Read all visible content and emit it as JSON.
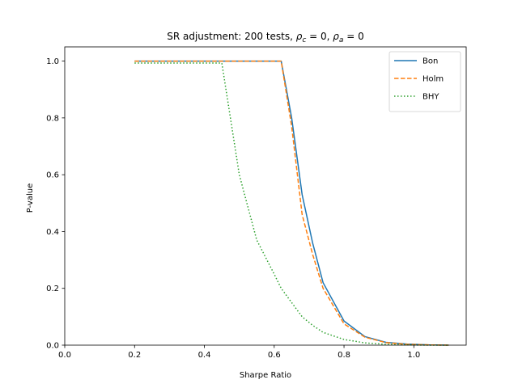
{
  "chart_data": {
    "type": "line",
    "title": {
      "prefix": "SR adjustment: 200 tests, ",
      "rho1_sub": "c",
      "mid": " = 0, ",
      "rho2_sub": "a",
      "suffix": " = 0"
    },
    "xlabel": "Sharpe Ratio",
    "ylabel": "P-value",
    "xlim": [
      0.0,
      1.15
    ],
    "ylim": [
      0.0,
      1.05
    ],
    "xticks": [
      0.0,
      0.2,
      0.4,
      0.6,
      0.8,
      1.0
    ],
    "xtick_labels": [
      "0.0",
      "0.2",
      "0.4",
      "0.6",
      "0.8",
      "1.0"
    ],
    "yticks": [
      0.0,
      0.2,
      0.4,
      0.6,
      0.8,
      1.0
    ],
    "ytick_labels": [
      "0.0",
      "0.2",
      "0.4",
      "0.6",
      "0.8",
      "1.0"
    ],
    "grid": false,
    "legend_position": "top-right",
    "x": [
      0.2,
      0.25,
      0.3,
      0.35,
      0.4,
      0.45,
      0.5,
      0.55,
      0.6,
      0.62,
      0.65,
      0.68,
      0.71,
      0.74,
      0.8,
      0.86,
      0.92,
      0.98,
      1.04,
      1.1
    ],
    "series": [
      {
        "name": "Bon",
        "color": "#1f77b4",
        "dash": "solid",
        "values": [
          1.0,
          1.0,
          1.0,
          1.0,
          1.0,
          1.0,
          1.0,
          1.0,
          1.0,
          1.0,
          0.8,
          0.53,
          0.36,
          0.22,
          0.085,
          0.03,
          0.01,
          0.004,
          0.001,
          0.0
        ]
      },
      {
        "name": "Holm",
        "color": "#ff7f0e",
        "dash": "dashed",
        "values": [
          1.0,
          1.0,
          1.0,
          1.0,
          1.0,
          1.0,
          1.0,
          1.0,
          1.0,
          1.0,
          0.77,
          0.46,
          0.32,
          0.2,
          0.075,
          0.028,
          0.009,
          0.003,
          0.001,
          0.0
        ]
      },
      {
        "name": "BHY",
        "color": "#2ca02c",
        "dash": "dotted",
        "values": [
          0.993,
          0.993,
          0.993,
          0.993,
          0.993,
          0.993,
          0.6,
          0.37,
          0.25,
          0.2,
          0.15,
          0.1,
          0.07,
          0.045,
          0.02,
          0.008,
          0.003,
          0.001,
          0.0,
          0.0
        ]
      }
    ]
  }
}
